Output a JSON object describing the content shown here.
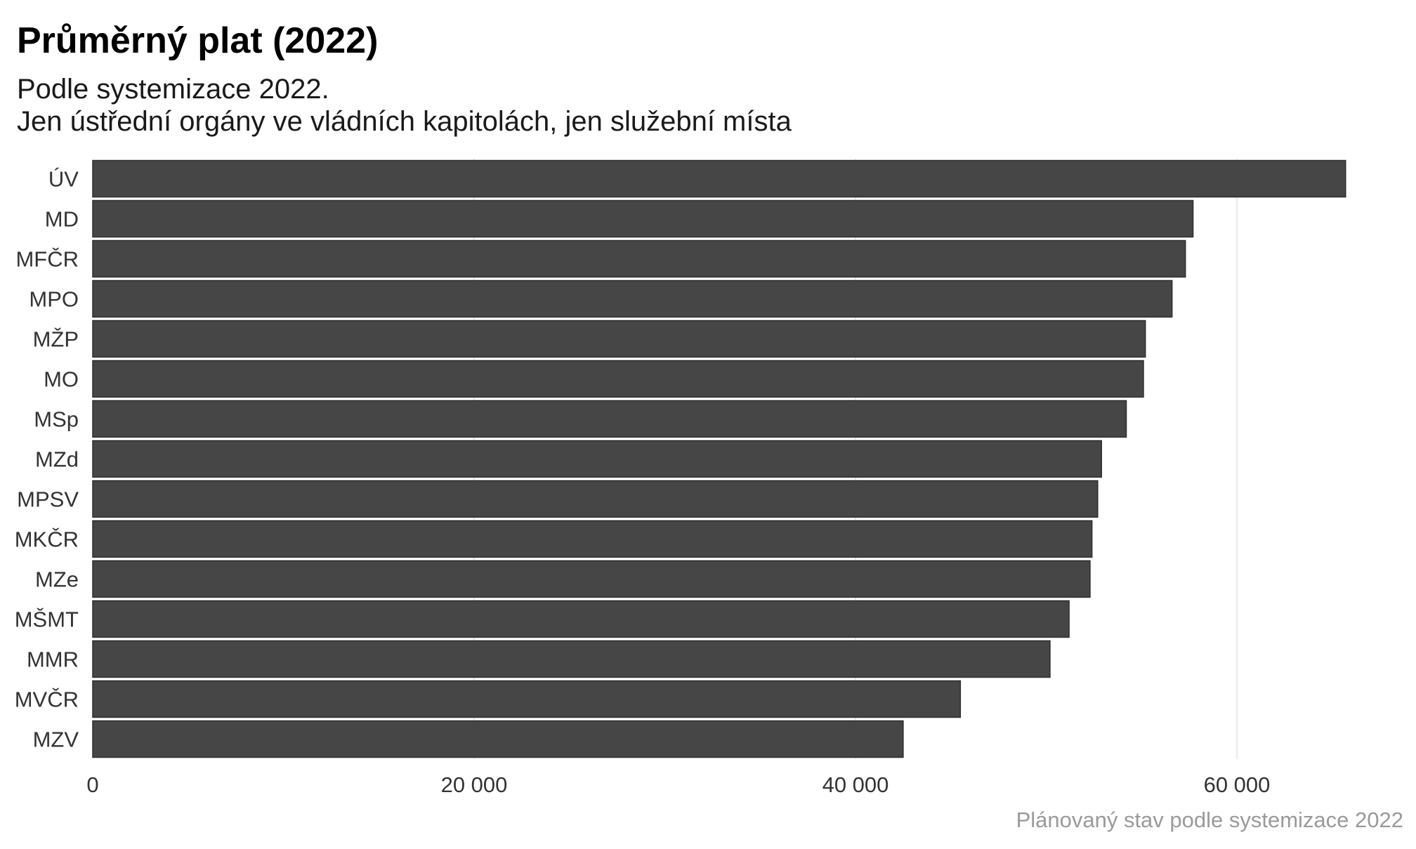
{
  "chart_data": {
    "type": "bar",
    "orientation": "horizontal",
    "title": "Průměrný plat (2022)",
    "subtitle": [
      "Podle systemizace 2022.",
      "Jen ústřední orgány ve vládních kapitolách, jen služební místa"
    ],
    "caption": "Plánovaný stav podle systemizace 2022",
    "xlabel": "",
    "ylabel": "",
    "xlim": [
      0,
      67000
    ],
    "xticks": [
      0,
      20000,
      40000,
      60000
    ],
    "xtick_labels": [
      "0",
      "20 000",
      "40 000",
      "60 000"
    ],
    "grid": "vertical",
    "legend": "none",
    "bar_color": "#464646",
    "categories": [
      "ÚV",
      "MD",
      "MFČR",
      "MPO",
      "MŽP",
      "MO",
      "MSp",
      "MZd",
      "MPSV",
      "MKČR",
      "MZe",
      "MŠMT",
      "MMR",
      "MVČR",
      "MZV"
    ],
    "values": [
      65700,
      57700,
      57300,
      56600,
      55200,
      55100,
      54200,
      52900,
      52700,
      52400,
      52300,
      51200,
      50200,
      45500,
      42500
    ]
  }
}
